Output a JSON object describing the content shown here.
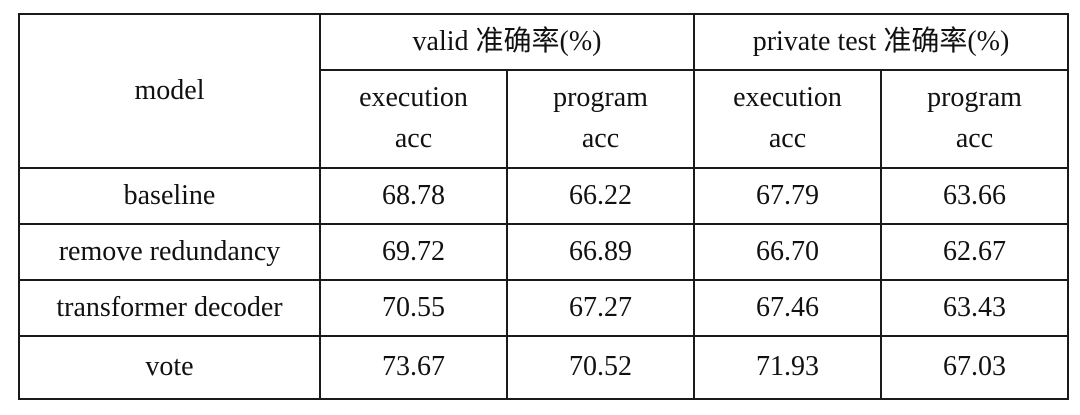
{
  "header": {
    "model": "model",
    "groups": [
      "valid 准确率(%)",
      "private test 准确率(%)"
    ],
    "sub": [
      {
        "line1": "execution",
        "line2": "acc"
      },
      {
        "line1": "program",
        "line2": "acc"
      },
      {
        "line1": "execution",
        "line2": "acc"
      },
      {
        "line1": "program",
        "line2": "acc"
      }
    ]
  },
  "rows": [
    {
      "model": "baseline",
      "values": [
        "68.78",
        "66.22",
        "67.79",
        "63.66"
      ]
    },
    {
      "model": "remove redundancy",
      "values": [
        "69.72",
        "66.89",
        "66.70",
        "62.67"
      ]
    },
    {
      "model": "transformer decoder",
      "values": [
        "70.55",
        "67.27",
        "67.46",
        "63.43"
      ]
    },
    {
      "model": "vote",
      "values": [
        "73.67",
        "70.52",
        "71.93",
        "67.03"
      ]
    }
  ]
}
